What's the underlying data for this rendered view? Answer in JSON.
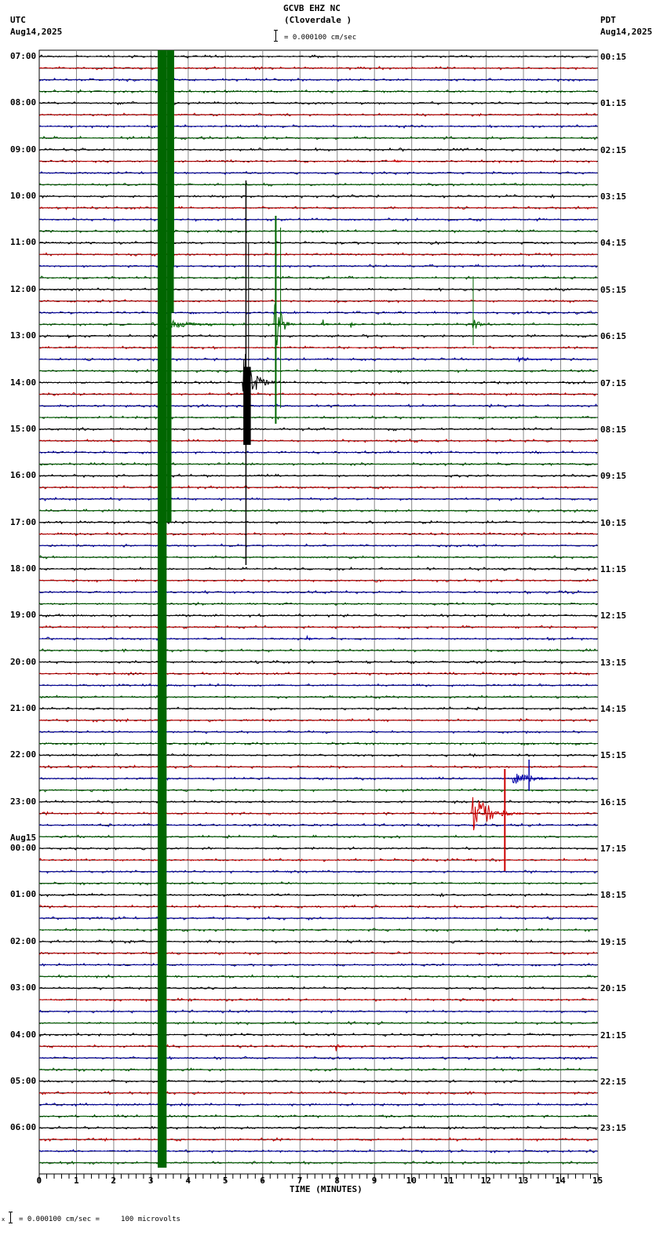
{
  "header": {
    "station": "GCVB EHZ NC",
    "location": "(Cloverdale )",
    "scale_text": "= 0.000100 cm/sec",
    "left_tz": "UTC",
    "left_date": "Aug14,2025",
    "right_tz": "PDT",
    "right_date": "Aug14,2025"
  },
  "footer": {
    "scale_text": "= 0.000100 cm/sec =     100 microvolts",
    "scale_prefix": "x"
  },
  "left_labels": [
    {
      "text": "07:00",
      "trace": 0
    },
    {
      "text": "08:00",
      "trace": 4
    },
    {
      "text": "09:00",
      "trace": 8
    },
    {
      "text": "10:00",
      "trace": 12
    },
    {
      "text": "11:00",
      "trace": 16
    },
    {
      "text": "12:00",
      "trace": 20
    },
    {
      "text": "13:00",
      "trace": 24
    },
    {
      "text": "14:00",
      "trace": 28
    },
    {
      "text": "15:00",
      "trace": 32
    },
    {
      "text": "16:00",
      "trace": 36
    },
    {
      "text": "17:00",
      "trace": 40
    },
    {
      "text": "18:00",
      "trace": 44
    },
    {
      "text": "19:00",
      "trace": 48
    },
    {
      "text": "20:00",
      "trace": 52
    },
    {
      "text": "21:00",
      "trace": 56
    },
    {
      "text": "22:00",
      "trace": 60
    },
    {
      "text": "23:00",
      "trace": 64
    },
    {
      "text": "00:00",
      "trace": 68,
      "date": "Aug15"
    },
    {
      "text": "01:00",
      "trace": 72
    },
    {
      "text": "02:00",
      "trace": 76
    },
    {
      "text": "03:00",
      "trace": 80
    },
    {
      "text": "04:00",
      "trace": 84
    },
    {
      "text": "05:00",
      "trace": 88
    },
    {
      "text": "06:00",
      "trace": 92
    }
  ],
  "right_labels": [
    {
      "text": "00:15",
      "trace": 0
    },
    {
      "text": "01:15",
      "trace": 4
    },
    {
      "text": "02:15",
      "trace": 8
    },
    {
      "text": "03:15",
      "trace": 12
    },
    {
      "text": "04:15",
      "trace": 16
    },
    {
      "text": "05:15",
      "trace": 20
    },
    {
      "text": "06:15",
      "trace": 24
    },
    {
      "text": "07:15",
      "trace": 28
    },
    {
      "text": "08:15",
      "trace": 32
    },
    {
      "text": "09:15",
      "trace": 36
    },
    {
      "text": "10:15",
      "trace": 40
    },
    {
      "text": "11:15",
      "trace": 44
    },
    {
      "text": "12:15",
      "trace": 48
    },
    {
      "text": "13:15",
      "trace": 52
    },
    {
      "text": "14:15",
      "trace": 56
    },
    {
      "text": "15:15",
      "trace": 60
    },
    {
      "text": "16:15",
      "trace": 64
    },
    {
      "text": "17:15",
      "trace": 68
    },
    {
      "text": "18:15",
      "trace": 72
    },
    {
      "text": "19:15",
      "trace": 76
    },
    {
      "text": "20:15",
      "trace": 80
    },
    {
      "text": "21:15",
      "trace": 84
    },
    {
      "text": "22:15",
      "trace": 88
    },
    {
      "text": "23:15",
      "trace": 92
    }
  ],
  "chart_data": {
    "type": "line",
    "title": "GCVB EHZ NC (Cloverdale )",
    "xlabel": "TIME (MINUTES)",
    "ylabel": "",
    "x_ticks": [
      "0",
      "1",
      "2",
      "3",
      "4",
      "5",
      "6",
      "7",
      "8",
      "9",
      "10",
      "11",
      "12",
      "13",
      "14",
      "15"
    ],
    "xlim": [
      0,
      15
    ],
    "minor_ticks_per_minute": 5,
    "grid": true,
    "trace_count": 96,
    "traces_per_hour": 4,
    "minutes_per_trace": 15,
    "start_utc": "Aug14,2025 07:00",
    "start_pdt": "Aug14,2025 00:15",
    "trace_colors": [
      "#000000",
      "#cc0000",
      "#0000aa",
      "#006600"
    ],
    "scale": "0.000100 cm/sec = 100 microvolts",
    "events": [
      {
        "desc": "large teleseismic/regional green column",
        "trace_start": 3,
        "trace_end": 95,
        "minute_start": 3.18,
        "minute_end": 3.45,
        "color": "#006600",
        "type": "saturated"
      },
      {
        "desc": "large event coda",
        "trace": 23,
        "minute_start": 3.2,
        "minute_end": 5.3,
        "amplitude": 12
      },
      {
        "desc": "local event black",
        "trace": 28,
        "minute_start": 5.45,
        "minute_end": 6.4,
        "amplitude": 60
      },
      {
        "desc": "green burst",
        "trace": 23,
        "minute_start": 6.3,
        "minute_end": 6.9,
        "amplitude": 55
      },
      {
        "desc": "small green",
        "trace": 23,
        "minute_start": 7.6,
        "minute_end": 7.9,
        "amplitude": 10
      },
      {
        "desc": "small green",
        "trace": 23,
        "minute_start": 8.35,
        "minute_end": 8.6,
        "amplitude": 6
      },
      {
        "desc": "green burst",
        "trace": 23,
        "minute_start": 11.6,
        "minute_end": 12.0,
        "amplitude": 25
      },
      {
        "desc": "small black",
        "trace": 24,
        "minute_start": 0.75,
        "minute_end": 1.0,
        "amplitude": 5
      },
      {
        "desc": "blue tremor",
        "trace": 26,
        "minute_start": 12.8,
        "minute_end": 14.0,
        "amplitude": 4
      },
      {
        "desc": "red small",
        "trace": 9,
        "minute_start": 9.5,
        "minute_end": 10.1,
        "amplitude": 3
      },
      {
        "desc": "blue small",
        "trace": 50,
        "minute_start": 7.15,
        "minute_end": 7.45,
        "amplitude": 6
      },
      {
        "desc": "blue event",
        "trace": 62,
        "minute_start": 12.7,
        "minute_end": 13.9,
        "amplitude": 18
      },
      {
        "desc": "red event",
        "trace": 65,
        "minute_start": 11.6,
        "minute_end": 13.0,
        "amplitude": 40
      },
      {
        "desc": "red small event",
        "trace": 85,
        "minute_start": 7.95,
        "minute_end": 8.25,
        "amplitude": 10
      }
    ]
  }
}
